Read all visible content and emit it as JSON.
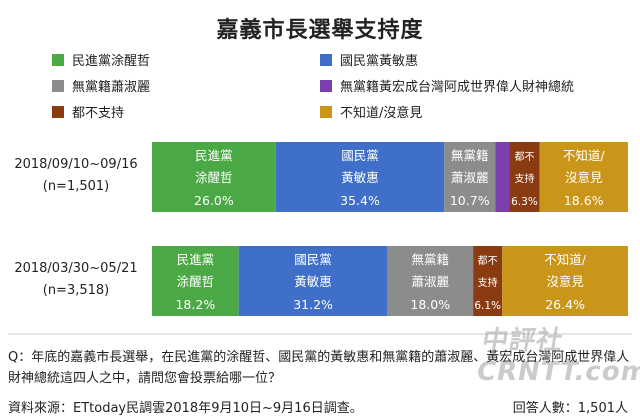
{
  "title": "嘉義市長選舉支持度",
  "chart_data": {
    "type": "bar",
    "orientation": "horizontal",
    "stacked": true,
    "percent_stacked": true,
    "legend_placement": "top",
    "categories": [
      "2018/09/10~09/16\n(n=1,501)",
      "2018/03/30~05/21\n(n=3,518)"
    ],
    "series": [
      {
        "name": "民進黨涂醒哲",
        "bar_label": "民進黨\n涂醒哲",
        "color": "#4aa845",
        "values": [
          26.0,
          18.2
        ]
      },
      {
        "name": "國民黨黃敏惠",
        "bar_label": "國民黨\n黃敏惠",
        "color": "#3f6fc8",
        "values": [
          35.4,
          31.2
        ]
      },
      {
        "name": "無黨籍蕭淑麗",
        "bar_label": "無黨籍\n蕭淑麗",
        "color": "#8c8c8c",
        "values": [
          10.7,
          18.0
        ]
      },
      {
        "name": "無黨籍黃宏成台灣阿成世界偉人財神總統",
        "bar_label": "",
        "color": "#7b3fb0",
        "values": [
          3.0,
          0.0
        ]
      },
      {
        "name": "都不支持",
        "bar_label": "都不\n支持",
        "color": "#8a3b12",
        "values": [
          6.3,
          6.1
        ]
      },
      {
        "name": "不知道/沒意見",
        "bar_label": "不知道/\n沒意見",
        "color": "#c9961a",
        "values": [
          18.6,
          26.4
        ]
      }
    ],
    "value_labels": [
      [
        "26.0%",
        "35.4%",
        "10.7%",
        "",
        "6.3%",
        "18.6%"
      ],
      [
        "18.2%",
        "31.2%",
        "18.0%",
        "",
        "6.1%",
        "26.4%"
      ]
    ]
  },
  "rows": [
    {
      "date": "2018/09/10~09/16",
      "n": "(n=1,501)"
    },
    {
      "date": "2018/03/30~05/21",
      "n": "(n=3,518)"
    }
  ],
  "question": "Q：年底的嘉義市長選舉，在民進黨的涂醒哲、國民黨的黃敏惠和無黨籍的蕭淑麗、黃宏成台灣阿成世界偉人財神總統這四人之中，請問您會投票給哪一位？",
  "source": "資料來源：ETtoday民調雲2018年9月10日~9月16日調查。",
  "respondents": "回答人數：1,501人",
  "watermark": "中評社 CRNTT.com"
}
